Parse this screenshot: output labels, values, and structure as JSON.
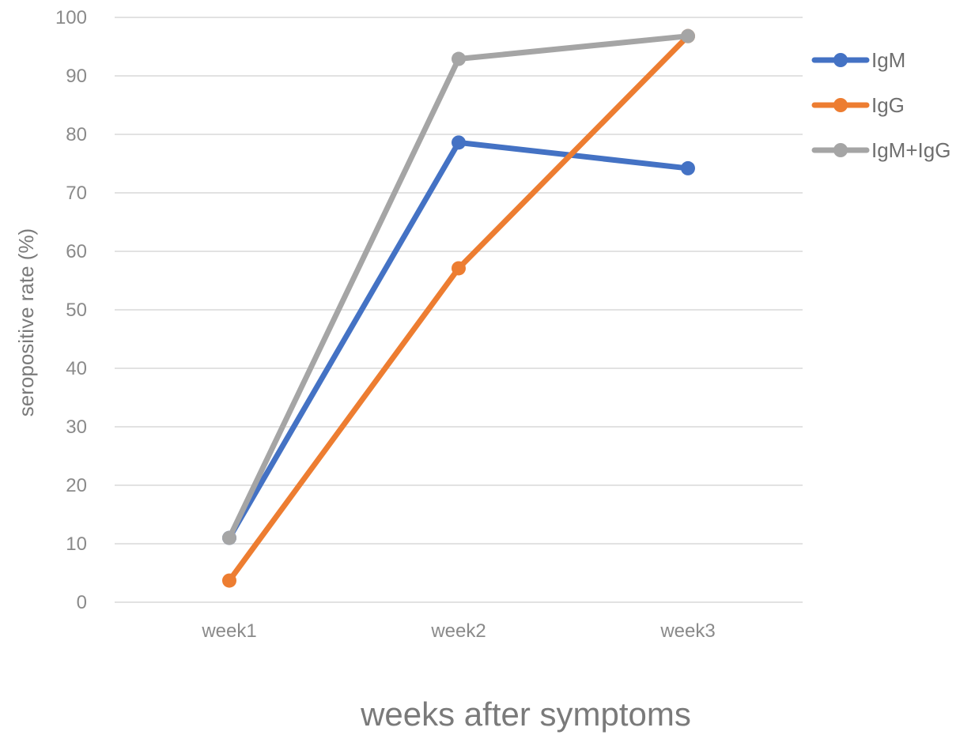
{
  "chart_data": {
    "type": "line",
    "title": "",
    "xlabel": "weeks after symptoms",
    "ylabel": "seropositive rate  (%)",
    "categories": [
      "week1",
      "week2",
      "week3"
    ],
    "ylim": [
      0,
      100
    ],
    "yticks": [
      "0",
      "10",
      "20",
      "30",
      "40",
      "50",
      "60",
      "70",
      "80",
      "90",
      "100"
    ],
    "grid": true,
    "legend_position": "top-right",
    "series": [
      {
        "name": "IgM",
        "color": "#4472C4",
        "values": [
          11,
          78.6,
          74.2
        ]
      },
      {
        "name": "IgG",
        "color": "#ED7D31",
        "values": [
          3.7,
          57.1,
          96.8
        ]
      },
      {
        "name": "IgM+IgG",
        "color": "#A5A5A5",
        "values": [
          11,
          92.9,
          96.8
        ]
      }
    ]
  }
}
